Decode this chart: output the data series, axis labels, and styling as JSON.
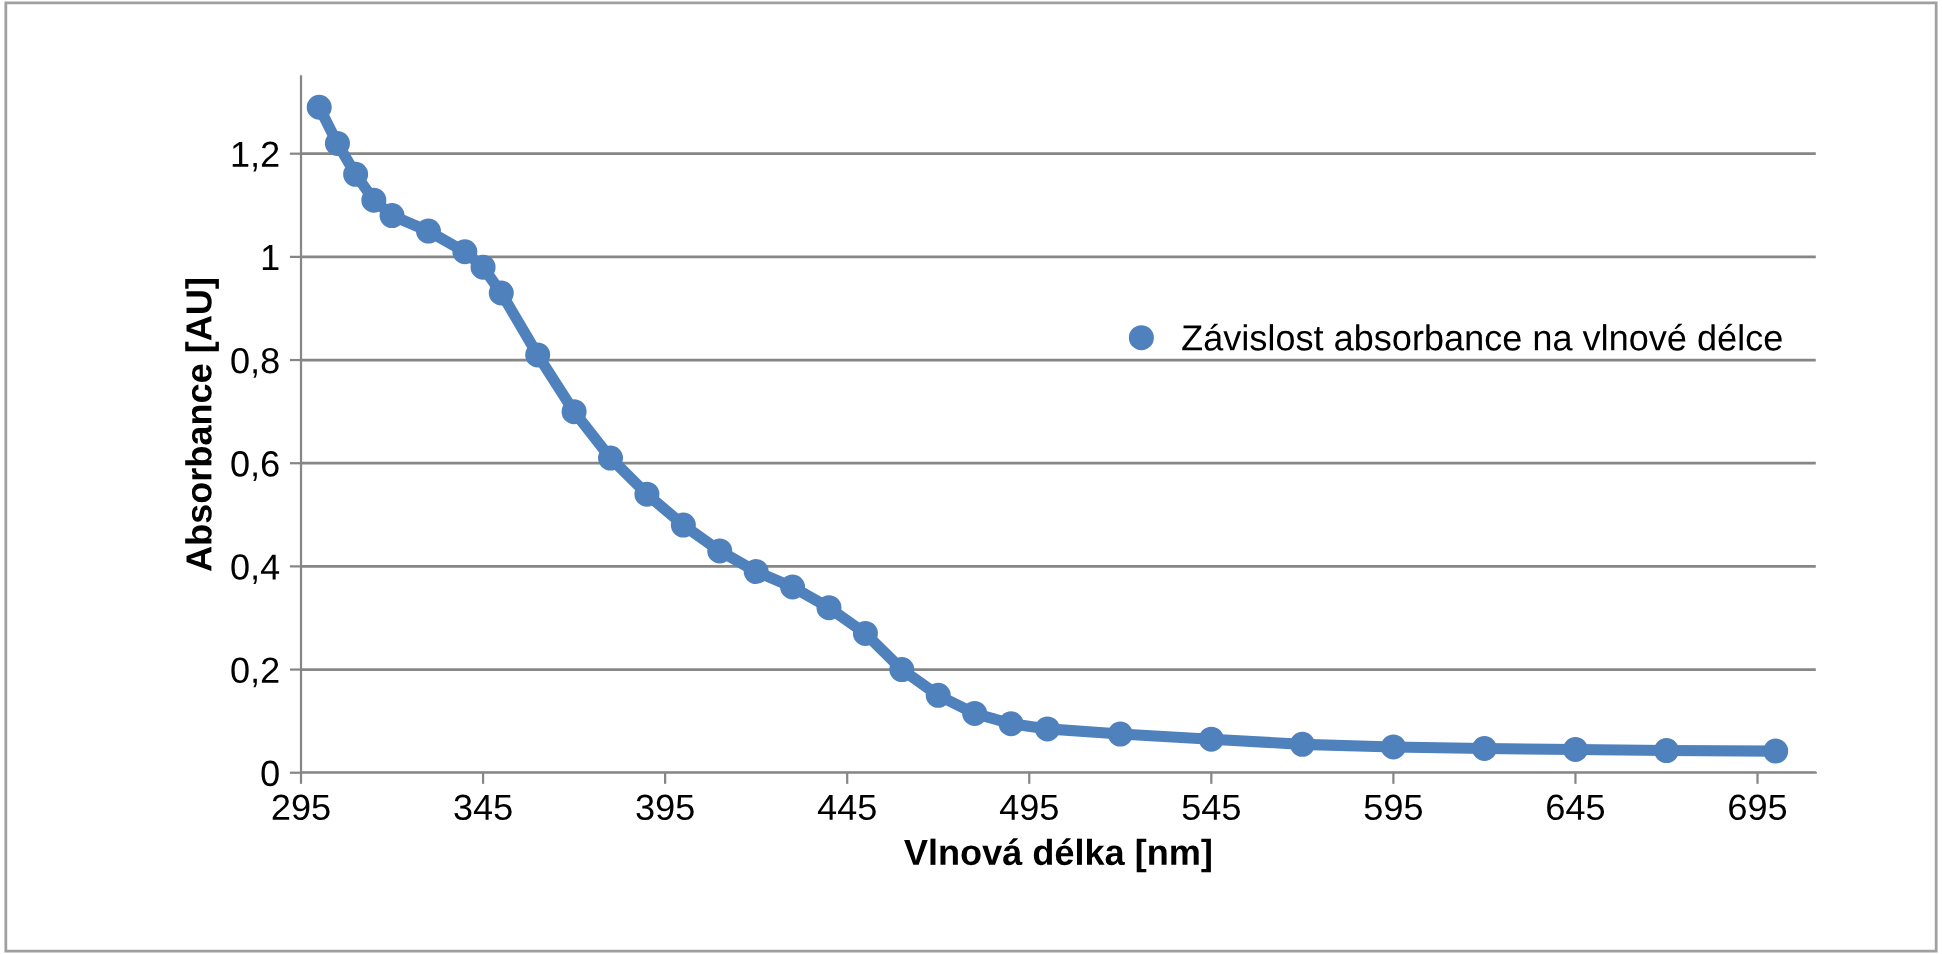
{
  "chart_data": {
    "type": "line",
    "xlabel": "Vlnová délka [nm]",
    "ylabel": "Absorbance [AU]",
    "x": [
      300,
      305,
      310,
      315,
      320,
      330,
      340,
      345,
      350,
      360,
      370,
      380,
      390,
      400,
      410,
      420,
      430,
      440,
      450,
      460,
      470,
      480,
      490,
      500,
      520,
      545,
      570,
      595,
      620,
      645,
      670,
      700
    ],
    "series": [
      {
        "name": "Závislost absorbance na vlnové délce",
        "color": "#4f81bd",
        "values": [
          1.29,
          1.22,
          1.16,
          1.11,
          1.08,
          1.05,
          1.01,
          0.98,
          0.93,
          0.81,
          0.7,
          0.61,
          0.54,
          0.48,
          0.43,
          0.39,
          0.36,
          0.32,
          0.27,
          0.2,
          0.15,
          0.115,
          0.095,
          0.085,
          0.075,
          0.065,
          0.055,
          0.05,
          0.047,
          0.045,
          0.043,
          0.042
        ]
      }
    ],
    "xlim": [
      295,
      711
    ],
    "xticks": [
      295,
      345,
      395,
      445,
      495,
      545,
      595,
      645,
      695
    ],
    "ylim": [
      0,
      1.35
    ],
    "yticks": [
      {
        "value": 0,
        "label": "0"
      },
      {
        "value": 0.2,
        "label": "0,2"
      },
      {
        "value": 0.4,
        "label": "0,4"
      },
      {
        "value": 0.6,
        "label": "0,6"
      },
      {
        "value": 0.8,
        "label": "0,8"
      },
      {
        "value": 1,
        "label": "1"
      },
      {
        "value": 1.2,
        "label": "1,2"
      }
    ],
    "grid": "y",
    "legend": "right",
    "marker": "circle",
    "line_style": "solid"
  }
}
